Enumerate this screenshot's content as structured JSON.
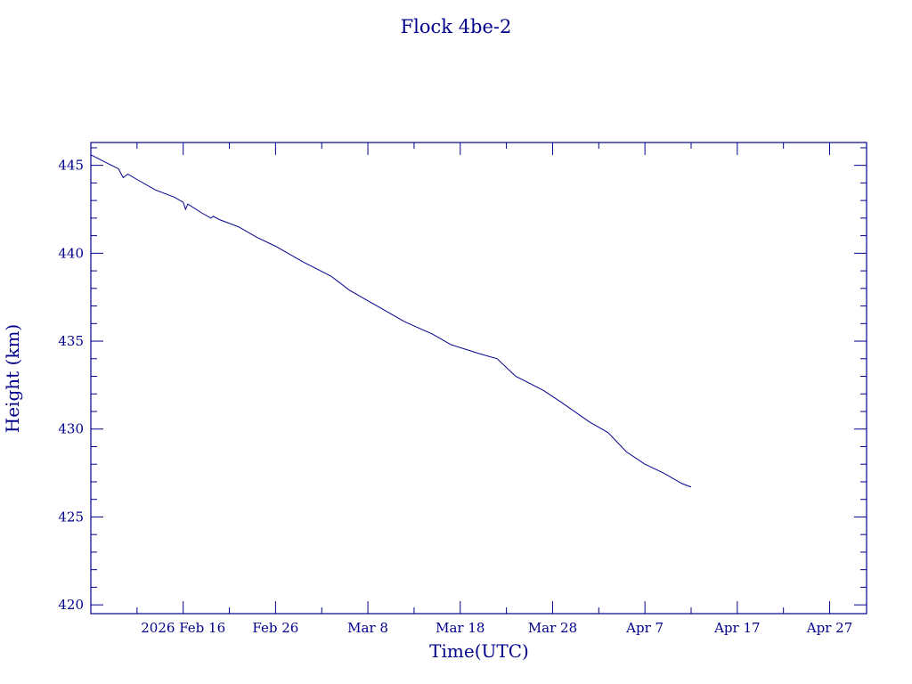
{
  "chart_data": {
    "type": "line",
    "title": "Flock 4be-2",
    "xlabel": "Time(UTC)",
    "ylabel": "Height (km)",
    "xlim": [
      "2026-02-06",
      "2026-05-01"
    ],
    "ylim": [
      419.5,
      446.3
    ],
    "grid": false,
    "x_ticks": [
      {
        "date": "2026-02-16",
        "label": "2026 Feb 16"
      },
      {
        "date": "2026-02-26",
        "label": "Feb 26"
      },
      {
        "date": "2026-03-08",
        "label": "Mar  8"
      },
      {
        "date": "2026-03-18",
        "label": "Mar 18"
      },
      {
        "date": "2026-03-28",
        "label": "Mar 28"
      },
      {
        "date": "2026-04-07",
        "label": "Apr  7"
      },
      {
        "date": "2026-04-17",
        "label": "Apr 17"
      },
      {
        "date": "2026-04-27",
        "label": "Apr 27"
      }
    ],
    "y_ticks": [
      420,
      425,
      430,
      435,
      440,
      445
    ],
    "y_minor_step": 1,
    "series": [
      {
        "color": "#00008b",
        "x": [
          "2026-02-06",
          "2026-02-09",
          "2026-02-09T12:00",
          "2026-02-10",
          "2026-02-11",
          "2026-02-13",
          "2026-02-15",
          "2026-02-16",
          "2026-02-16T06:00",
          "2026-02-16T12:00",
          "2026-02-18",
          "2026-02-19",
          "2026-02-19T06:00",
          "2026-02-20",
          "2026-02-22",
          "2026-02-24",
          "2026-02-26",
          "2026-03-01",
          "2026-03-04",
          "2026-03-06",
          "2026-03-09",
          "2026-03-12",
          "2026-03-15",
          "2026-03-17",
          "2026-03-20",
          "2026-03-22",
          "2026-03-24",
          "2026-03-27",
          "2026-03-29",
          "2026-04-01",
          "2026-04-03",
          "2026-04-05",
          "2026-04-07",
          "2026-04-09",
          "2026-04-11",
          "2026-04-12"
        ],
        "y": [
          445.6,
          444.8,
          444.3,
          444.5,
          444.2,
          443.6,
          443.2,
          442.9,
          442.5,
          442.8,
          442.3,
          442.0,
          442.1,
          441.9,
          441.5,
          440.9,
          440.4,
          439.5,
          438.7,
          437.9,
          437.0,
          436.1,
          435.4,
          434.8,
          434.3,
          434.0,
          433.0,
          432.2,
          431.5,
          430.4,
          429.8,
          428.7,
          428.0,
          427.5,
          426.9,
          426.7
        ]
      }
    ]
  }
}
